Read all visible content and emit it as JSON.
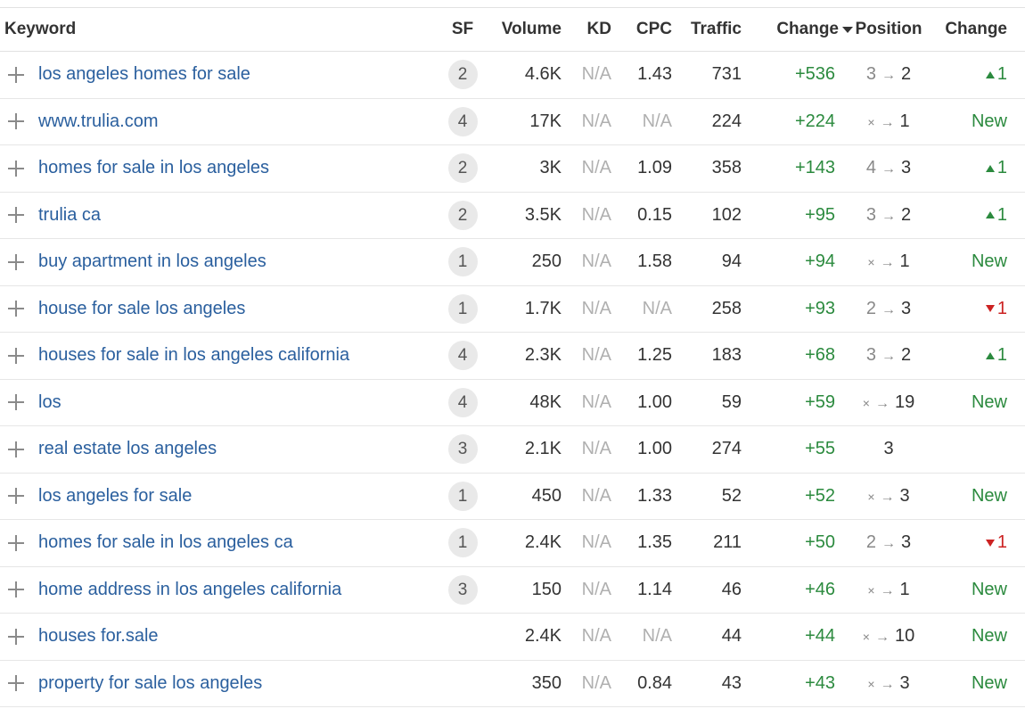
{
  "table": {
    "headers": {
      "keyword": "Keyword",
      "sf": "SF",
      "volume": "Volume",
      "kd": "KD",
      "cpc": "CPC",
      "traffic": "Traffic",
      "change": "Change",
      "position": "Position",
      "position_change": "Change"
    },
    "sort": {
      "column": "change",
      "direction": "desc",
      "icon": "sort-desc-icon"
    },
    "icons": {
      "expand": "plus-icon",
      "arrow": "→",
      "none_marker": "×"
    },
    "colors": {
      "link": "#2a5f9e",
      "positive": "#2b8a3e",
      "negative": "#cc2222",
      "muted": "#b0b0b0"
    },
    "rows": [
      {
        "keyword": "los angeles homes for sale",
        "sf": "2",
        "volume": "4.6K",
        "kd": "N/A",
        "cpc": "1.43",
        "traffic": "731",
        "change": "+536",
        "pos_from": "3",
        "pos_to": "2",
        "pos_change": {
          "type": "up",
          "text": "1"
        }
      },
      {
        "keyword": "www.trulia.com",
        "sf": "4",
        "volume": "17K",
        "kd": "N/A",
        "cpc": "N/A",
        "traffic": "224",
        "change": "+224",
        "pos_from": "×",
        "pos_to": "1",
        "pos_change": {
          "type": "new",
          "text": "New"
        }
      },
      {
        "keyword": "homes for sale in los angeles",
        "sf": "2",
        "volume": "3K",
        "kd": "N/A",
        "cpc": "1.09",
        "traffic": "358",
        "change": "+143",
        "pos_from": "4",
        "pos_to": "3",
        "pos_change": {
          "type": "up",
          "text": "1"
        }
      },
      {
        "keyword": "trulia ca",
        "sf": "2",
        "volume": "3.5K",
        "kd": "N/A",
        "cpc": "0.15",
        "traffic": "102",
        "change": "+95",
        "pos_from": "3",
        "pos_to": "2",
        "pos_change": {
          "type": "up",
          "text": "1"
        }
      },
      {
        "keyword": "buy apartment in los angeles",
        "sf": "1",
        "volume": "250",
        "kd": "N/A",
        "cpc": "1.58",
        "traffic": "94",
        "change": "+94",
        "pos_from": "×",
        "pos_to": "1",
        "pos_change": {
          "type": "new",
          "text": "New"
        }
      },
      {
        "keyword": "house for sale los angeles",
        "sf": "1",
        "volume": "1.7K",
        "kd": "N/A",
        "cpc": "N/A",
        "traffic": "258",
        "change": "+93",
        "pos_from": "2",
        "pos_to": "3",
        "pos_change": {
          "type": "down",
          "text": "1"
        }
      },
      {
        "keyword": "houses for sale in los angeles california",
        "sf": "4",
        "volume": "2.3K",
        "kd": "N/A",
        "cpc": "1.25",
        "traffic": "183",
        "change": "+68",
        "pos_from": "3",
        "pos_to": "2",
        "pos_change": {
          "type": "up",
          "text": "1"
        }
      },
      {
        "keyword": "los",
        "sf": "4",
        "volume": "48K",
        "kd": "N/A",
        "cpc": "1.00",
        "traffic": "59",
        "change": "+59",
        "pos_from": "×",
        "pos_to": "19",
        "pos_change": {
          "type": "new",
          "text": "New"
        }
      },
      {
        "keyword": "real estate los angeles",
        "sf": "3",
        "volume": "2.1K",
        "kd": "N/A",
        "cpc": "1.00",
        "traffic": "274",
        "change": "+55",
        "pos_from": "",
        "pos_to": "3",
        "pos_change": {
          "type": "none",
          "text": ""
        }
      },
      {
        "keyword": "los angeles for sale",
        "sf": "1",
        "volume": "450",
        "kd": "N/A",
        "cpc": "1.33",
        "traffic": "52",
        "change": "+52",
        "pos_from": "×",
        "pos_to": "3",
        "pos_change": {
          "type": "new",
          "text": "New"
        }
      },
      {
        "keyword": "homes for sale in los angeles ca",
        "sf": "1",
        "volume": "2.4K",
        "kd": "N/A",
        "cpc": "1.35",
        "traffic": "211",
        "change": "+50",
        "pos_from": "2",
        "pos_to": "3",
        "pos_change": {
          "type": "down",
          "text": "1"
        }
      },
      {
        "keyword": "home address in los angeles california",
        "sf": "3",
        "volume": "150",
        "kd": "N/A",
        "cpc": "1.14",
        "traffic": "46",
        "change": "+46",
        "pos_from": "×",
        "pos_to": "1",
        "pos_change": {
          "type": "new",
          "text": "New"
        }
      },
      {
        "keyword": "houses for.sale",
        "sf": "",
        "volume": "2.4K",
        "kd": "N/A",
        "cpc": "N/A",
        "traffic": "44",
        "change": "+44",
        "pos_from": "×",
        "pos_to": "10",
        "pos_change": {
          "type": "new",
          "text": "New"
        }
      },
      {
        "keyword": "property for sale los angeles",
        "sf": "",
        "volume": "350",
        "kd": "N/A",
        "cpc": "0.84",
        "traffic": "43",
        "change": "+43",
        "pos_from": "×",
        "pos_to": "3",
        "pos_change": {
          "type": "new",
          "text": "New"
        }
      }
    ]
  }
}
